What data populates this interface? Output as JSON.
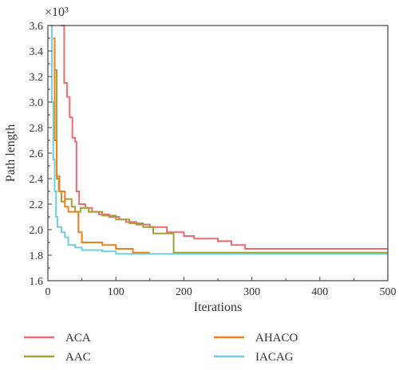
{
  "chart_data": {
    "type": "line",
    "title": "",
    "xlabel": "Iterations",
    "ylabel": "Path length",
    "y_multiplier": "×10³",
    "xlim": [
      0,
      500
    ],
    "ylim": [
      1.6,
      3.6
    ],
    "x_ticks": [
      "0",
      "100",
      "200",
      "300",
      "400",
      "500"
    ],
    "y_ticks": [
      "1.6",
      "1.8",
      "2.0",
      "2.2",
      "2.4",
      "2.6",
      "2.8",
      "3.0",
      "3.2",
      "3.4",
      "3.6"
    ],
    "grid": false,
    "legend_position": "below",
    "series": [
      {
        "name": "ACA",
        "color": "#ee6b73",
        "points": [
          [
            20,
            3.6
          ],
          [
            24,
            3.6
          ],
          [
            24,
            3.15
          ],
          [
            28,
            3.15
          ],
          [
            28,
            3.04
          ],
          [
            32,
            3.04
          ],
          [
            32,
            2.88
          ],
          [
            36,
            2.88
          ],
          [
            36,
            2.72
          ],
          [
            40,
            2.72
          ],
          [
            40,
            2.69
          ],
          [
            42,
            2.69
          ],
          [
            42,
            2.3
          ],
          [
            46,
            2.3
          ],
          [
            46,
            2.2
          ],
          [
            55,
            2.2
          ],
          [
            55,
            2.17
          ],
          [
            65,
            2.17
          ],
          [
            65,
            2.14
          ],
          [
            75,
            2.14
          ],
          [
            75,
            2.12
          ],
          [
            90,
            2.12
          ],
          [
            90,
            2.1
          ],
          [
            105,
            2.1
          ],
          [
            105,
            2.08
          ],
          [
            115,
            2.08
          ],
          [
            115,
            2.06
          ],
          [
            130,
            2.06
          ],
          [
            130,
            2.04
          ],
          [
            150,
            2.04
          ],
          [
            150,
            2.02
          ],
          [
            175,
            2.02
          ],
          [
            175,
            1.98
          ],
          [
            200,
            1.98
          ],
          [
            200,
            1.95
          ],
          [
            215,
            1.95
          ],
          [
            215,
            1.93
          ],
          [
            250,
            1.93
          ],
          [
            250,
            1.91
          ],
          [
            270,
            1.91
          ],
          [
            270,
            1.88
          ],
          [
            290,
            1.88
          ],
          [
            290,
            1.85
          ],
          [
            500,
            1.85
          ]
        ]
      },
      {
        "name": "AAC",
        "color": "#a3a034",
        "points": [
          [
            10,
            3.25
          ],
          [
            13,
            3.25
          ],
          [
            13,
            2.4
          ],
          [
            16,
            2.4
          ],
          [
            16,
            2.3
          ],
          [
            20,
            2.3
          ],
          [
            20,
            2.22
          ],
          [
            25,
            2.22
          ],
          [
            25,
            2.24
          ],
          [
            35,
            2.24
          ],
          [
            35,
            2.18
          ],
          [
            40,
            2.18
          ],
          [
            40,
            2.14
          ],
          [
            48,
            2.14
          ],
          [
            48,
            2.17
          ],
          [
            60,
            2.17
          ],
          [
            60,
            2.14
          ],
          [
            80,
            2.14
          ],
          [
            80,
            2.11
          ],
          [
            100,
            2.11
          ],
          [
            100,
            2.08
          ],
          [
            120,
            2.08
          ],
          [
            120,
            2.05
          ],
          [
            140,
            2.05
          ],
          [
            140,
            2.02
          ],
          [
            155,
            2.02
          ],
          [
            155,
            1.97
          ],
          [
            185,
            1.97
          ],
          [
            185,
            1.82
          ],
          [
            500,
            1.82
          ]
        ]
      },
      {
        "name": "AHACO",
        "color": "#f07f1f",
        "points": [
          [
            8,
            3.5
          ],
          [
            10,
            3.5
          ],
          [
            10,
            2.7
          ],
          [
            13,
            2.7
          ],
          [
            13,
            2.42
          ],
          [
            17,
            2.42
          ],
          [
            17,
            2.3
          ],
          [
            25,
            2.3
          ],
          [
            25,
            2.18
          ],
          [
            30,
            2.18
          ],
          [
            30,
            2.14
          ],
          [
            45,
            2.14
          ],
          [
            45,
            1.98
          ],
          [
            50,
            1.98
          ],
          [
            50,
            1.9
          ],
          [
            80,
            1.9
          ],
          [
            80,
            1.88
          ],
          [
            100,
            1.88
          ],
          [
            100,
            1.85
          ],
          [
            125,
            1.85
          ],
          [
            125,
            1.82
          ],
          [
            150,
            1.82
          ]
        ]
      },
      {
        "name": "IACAG",
        "color": "#70cde0",
        "points": [
          [
            4,
            3.6
          ],
          [
            6,
            3.6
          ],
          [
            6,
            3.0
          ],
          [
            8,
            3.0
          ],
          [
            8,
            2.55
          ],
          [
            10,
            2.55
          ],
          [
            10,
            2.3
          ],
          [
            12,
            2.3
          ],
          [
            12,
            2.1
          ],
          [
            14,
            2.1
          ],
          [
            14,
            2.02
          ],
          [
            20,
            2.02
          ],
          [
            20,
            1.98
          ],
          [
            25,
            1.98
          ],
          [
            25,
            1.94
          ],
          [
            30,
            1.94
          ],
          [
            30,
            1.88
          ],
          [
            40,
            1.88
          ],
          [
            40,
            1.86
          ],
          [
            50,
            1.86
          ],
          [
            50,
            1.84
          ],
          [
            80,
            1.84
          ],
          [
            80,
            1.83
          ],
          [
            100,
            1.83
          ],
          [
            100,
            1.81
          ],
          [
            500,
            1.81
          ]
        ]
      }
    ]
  }
}
